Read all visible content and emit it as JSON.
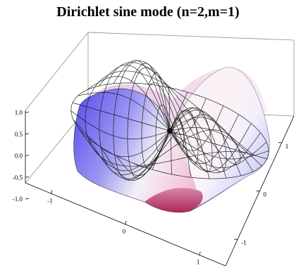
{
  "chart_data": {
    "type": "surface3d",
    "title": "Dirichlet sine mode (n=2,m=1)",
    "n": 2,
    "m": 1,
    "domain": "unit disk",
    "x_ticks": [
      "-1",
      "0",
      "1"
    ],
    "y_ticks": [
      "1",
      "0",
      "-1"
    ],
    "z_ticks": [
      "1.0",
      "0.5",
      "0.0",
      "-0.5",
      "-1.0"
    ],
    "z_range": [
      -1,
      1
    ],
    "mesh": true,
    "colors": {
      "high": "#f3c3d6",
      "mid": "#f4f0f7",
      "low": "#4a3ee8",
      "trough": "#a8275a"
    }
  }
}
